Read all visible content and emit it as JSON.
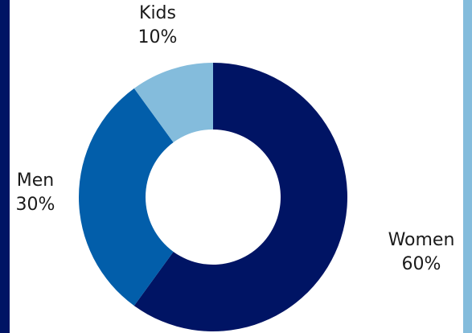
{
  "chart_data": {
    "type": "pie",
    "variant": "donut",
    "title": "",
    "slices": [
      {
        "label": "Women",
        "value": 60,
        "value_label": "60%",
        "color": "#001464"
      },
      {
        "label": "Men",
        "value": 30,
        "value_label": "30%",
        "color": "#025EAA"
      },
      {
        "label": "Kids",
        "value": 10,
        "value_label": "10%",
        "color": "#84BCDC"
      }
    ],
    "legend": "none",
    "start_angle_deg": 0,
    "direction": "clockwise"
  },
  "frame": {
    "left_edge_color": "#001464",
    "right_edge_color": "#84BCDC"
  }
}
